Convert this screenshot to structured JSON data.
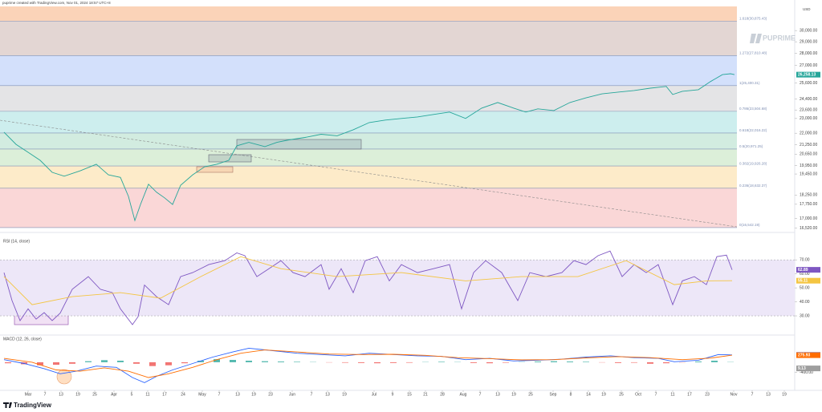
{
  "header": {
    "note": "puprime created with TradingView.com, Nov 01, 2024 18:57 UTC+8",
    "currency": "USD",
    "watermark": "PUPRIME",
    "brand": "TradingView"
  },
  "chart_data": [
    {
      "type": "line",
      "log_scale": true,
      "xlim": [
        0,
        198
      ],
      "ylim": [
        16500,
        32270
      ],
      "yticks": [
        {
          "value": 30000,
          "label": "30,000.00"
        },
        {
          "value": 29000,
          "label": "29,000.00"
        },
        {
          "value": 28000,
          "label": "28,000.00"
        },
        {
          "value": 27000,
          "label": "27,000.00"
        },
        {
          "value": 25600,
          "label": "25,600.00"
        },
        {
          "value": 24400,
          "label": "24,400.00"
        },
        {
          "value": 23600,
          "label": "23,600.00"
        },
        {
          "value": 23000,
          "label": "23,000.00"
        },
        {
          "value": 22000,
          "label": "22,000.00"
        },
        {
          "value": 21250,
          "label": "21,250.00"
        },
        {
          "value": 20650,
          "label": "20,650.00"
        },
        {
          "value": 19950,
          "label": "19,950.00"
        },
        {
          "value": 19450,
          "label": "19,450.00"
        },
        {
          "value": 18250,
          "label": "18,250.00"
        },
        {
          "value": 17750,
          "label": "17,750.00"
        },
        {
          "value": 17000,
          "label": "17,000.00"
        },
        {
          "value": 16520,
          "label": "16,520.00"
        }
      ],
      "xticks": [
        {
          "value": 7,
          "label": "Mar"
        },
        {
          "value": 11.2,
          "label": "7"
        },
        {
          "value": 15.2,
          "label": "13"
        },
        {
          "value": 19.4,
          "label": "19"
        },
        {
          "value": 23.6,
          "label": "25"
        },
        {
          "value": 28.4,
          "label": "Apr"
        },
        {
          "value": 32.8,
          "label": "5"
        },
        {
          "value": 36.8,
          "label": "11"
        },
        {
          "value": 41,
          "label": "17"
        },
        {
          "value": 45.6,
          "label": "24"
        },
        {
          "value": 50.4,
          "label": "May"
        },
        {
          "value": 54.6,
          "label": "7"
        },
        {
          "value": 59.2,
          "label": "13"
        },
        {
          "value": 63.2,
          "label": "19"
        },
        {
          "value": 67.4,
          "label": "23"
        },
        {
          "value": 72.8,
          "label": "Jun"
        },
        {
          "value": 77.6,
          "label": "7"
        },
        {
          "value": 81.6,
          "label": "13"
        },
        {
          "value": 85.8,
          "label": "19"
        },
        {
          "value": 93.2,
          "label": "Jul"
        },
        {
          "value": 97.8,
          "label": "9"
        },
        {
          "value": 102,
          "label": "15"
        },
        {
          "value": 106,
          "label": "21"
        },
        {
          "value": 110.2,
          "label": "28"
        },
        {
          "value": 115.4,
          "label": "Aug"
        },
        {
          "value": 119.6,
          "label": "7"
        },
        {
          "value": 124,
          "label": "13"
        },
        {
          "value": 128,
          "label": "19"
        },
        {
          "value": 132.2,
          "label": "25"
        },
        {
          "value": 137.8,
          "label": "Sep"
        },
        {
          "value": 142.2,
          "label": "8"
        },
        {
          "value": 146.6,
          "label": "14"
        },
        {
          "value": 150.4,
          "label": "19"
        },
        {
          "value": 154.8,
          "label": "25"
        },
        {
          "value": 159,
          "label": "Oct"
        },
        {
          "value": 163.4,
          "label": "7"
        },
        {
          "value": 167.6,
          "label": "11"
        },
        {
          "value": 171.8,
          "label": "17"
        },
        {
          "value": 176.2,
          "label": "23"
        },
        {
          "value": 182.8,
          "label": "Nov"
        },
        {
          "value": 187.4,
          "label": "7"
        },
        {
          "value": 191.4,
          "label": "13"
        },
        {
          "value": 195.4,
          "label": "19"
        }
      ],
      "fib_top_fill": "#fbd3b8",
      "fib_line_color": "#7f8fb3",
      "fib_levels": [
        {
          "value": 30875.43,
          "label": "1.618(30,875.43)",
          "fill": "#e3d6d3"
        },
        {
          "value": 27810.48,
          "label": "1.272(27,810.48)",
          "fill": "#d3e0fb"
        },
        {
          "value": 25400.31,
          "label": "1(25,400.31)",
          "fill": "#e4e4e6"
        },
        {
          "value": 23504.68,
          "label": "0.786(23,504.68)",
          "fill": "#cdeeee"
        },
        {
          "value": 22016.22,
          "label": "0.618(22,016.22)",
          "fill": "#d2ece0"
        },
        {
          "value": 20971.25,
          "label": "0.5(20,971.25)",
          "fill": "#dcefd9"
        },
        {
          "value": 19926.28,
          "label": "0.382(19,926.28)",
          "fill": "#fdebc9"
        },
        {
          "value": 18632.37,
          "label": "0.236(18,632.37)",
          "fill": "#fad7d7"
        },
        {
          "value": 16542.19,
          "label": "0(16,542.19)"
        }
      ],
      "series": [
        {
          "color": "#26a69a",
          "last_value_label": "26,258.13",
          "x": [
            1,
            4,
            7,
            10,
            13,
            16,
            20,
            24,
            27,
            30,
            32,
            33.6,
            35,
            37,
            39,
            41,
            43,
            45,
            48,
            51,
            54,
            57,
            59,
            62,
            66,
            69,
            72,
            76,
            80,
            84,
            88,
            92,
            96,
            100,
            104,
            108,
            112,
            116,
            120,
            124,
            128,
            131,
            134,
            138,
            142,
            146,
            150,
            154,
            158,
            162,
            166,
            167.6,
            170,
            174,
            177,
            180,
            182,
            183
          ],
          "values": [
            22070,
            21270,
            20770,
            20270,
            19550,
            19320,
            19640,
            20030,
            19400,
            19250,
            18180,
            16900,
            17740,
            18860,
            18410,
            18100,
            17740,
            18800,
            19400,
            19880,
            20030,
            20270,
            21180,
            21400,
            21130,
            21400,
            21560,
            21720,
            21930,
            21830,
            22230,
            22720,
            22890,
            23000,
            23110,
            23280,
            23450,
            23000,
            23730,
            24140,
            23730,
            23450,
            23680,
            23560,
            24140,
            24480,
            24780,
            24910,
            25030,
            25210,
            25340,
            24730,
            24970,
            25090,
            25710,
            26260,
            26330,
            26258.13
          ]
        }
      ]
    },
    {
      "type": "line",
      "title": "RSI (14, close)",
      "ylim": [
        18,
        85
      ],
      "band": [
        30,
        70
      ],
      "band_color": "#ede7f8",
      "yticks": [
        {
          "value": 70,
          "label": "70.00"
        },
        {
          "value": 60,
          "label": "60.00"
        },
        {
          "value": 50,
          "label": "50.00"
        },
        {
          "value": 40,
          "label": "40.00"
        },
        {
          "value": 30,
          "label": "30.00"
        }
      ],
      "series": [
        {
          "color": "#7e57c2",
          "x": [
            1,
            3,
            5,
            7,
            9,
            11,
            13,
            15,
            18,
            22,
            25,
            28,
            30,
            33,
            34.4,
            36,
            39,
            42,
            45,
            48,
            52,
            56,
            59,
            61,
            64,
            67,
            70,
            73,
            76,
            80,
            82,
            85,
            88,
            91,
            94,
            97,
            100,
            104,
            108,
            112,
            115,
            118,
            121,
            125,
            129,
            132,
            136,
            140,
            143,
            146,
            149,
            152,
            155,
            158,
            161,
            164,
            167.6,
            170,
            173,
            176,
            178.6,
            181,
            182.4
          ],
          "values": [
            60.9,
            40.9,
            26.6,
            35,
            27.7,
            32.3,
            26.6,
            32,
            49,
            58,
            49,
            46.6,
            35,
            23.7,
            29.4,
            52,
            43.7,
            38,
            58,
            60.9,
            66.6,
            69.4,
            75,
            73,
            58,
            63.7,
            69.4,
            60.9,
            58,
            66.6,
            49,
            63.7,
            46.6,
            69.4,
            72.3,
            55,
            66.6,
            60.9,
            63.7,
            66.6,
            35,
            60.9,
            69.4,
            60.9,
            40.9,
            60.9,
            58,
            60.9,
            69.4,
            66.6,
            73,
            76.3,
            58,
            66.6,
            60.9,
            66.6,
            38,
            55,
            58,
            52.3,
            72.3,
            73.4,
            62.89
          ]
        },
        {
          "color": "#f4c542",
          "x": [
            1,
            8,
            18,
            30,
            40,
            50,
            60,
            70,
            84,
            100,
            116,
            130,
            144,
            156,
            168,
            176,
            182.4
          ],
          "values": [
            58,
            38,
            43.7,
            46.6,
            42.6,
            58,
            72.3,
            63.7,
            58,
            60.9,
            55,
            58,
            58,
            69.4,
            52.3,
            55,
            55.11
          ]
        }
      ]
    },
    {
      "type": "macd",
      "title": "MACD (12, 26, close)",
      "ylim": [
        -1100,
        1000
      ],
      "yticks": [
        {
          "value": -400,
          "label": "-400.00"
        }
      ],
      "up_color": "#26a69a",
      "down_color": "#ef5350",
      "histogram_color": "#9e9e9e",
      "histogram": {
        "x": [
          2,
          6,
          10,
          14,
          18,
          22,
          26,
          30,
          34,
          38,
          42,
          46,
          50,
          54,
          58,
          62,
          66,
          70,
          74,
          78,
          82,
          86,
          90,
          94,
          98,
          102,
          106,
          110,
          114,
          118,
          122,
          126,
          130,
          134,
          138,
          142,
          146,
          150,
          154,
          158,
          162,
          166,
          170,
          174,
          178,
          182
        ],
        "values": [
          -40,
          -80,
          -120,
          -100,
          -60,
          40,
          80,
          60,
          -60,
          -150,
          -120,
          -40,
          60,
          120,
          90,
          60,
          40,
          30,
          20,
          10,
          -10,
          -20,
          -30,
          -40,
          -30,
          -20,
          10,
          20,
          10,
          -30,
          -40,
          -20,
          10,
          30,
          40,
          30,
          20,
          -10,
          -30,
          -20,
          -60,
          -40,
          -10,
          30,
          60,
          9.13
        ]
      },
      "series": [
        {
          "color": "#2962ff",
          "x": [
            1,
            6,
            11,
            15,
            19,
            24,
            29,
            33,
            36,
            39,
            43,
            48,
            53,
            58,
            62,
            68,
            74,
            80,
            86,
            92,
            98,
            104,
            110,
            116,
            122,
            128,
            134,
            140,
            146,
            152,
            158,
            164,
            168,
            174,
            179,
            182.4
          ],
          "values": [
            100,
            -50,
            -250,
            -450,
            -350,
            -150,
            -200,
            -600,
            -800,
            -550,
            -300,
            -50,
            200,
            400,
            550,
            450,
            350,
            300,
            250,
            350,
            300,
            250,
            230,
            100,
            150,
            50,
            80,
            120,
            200,
            250,
            180,
            150,
            20,
            80,
            300,
            285.06
          ]
        },
        {
          "color": "#ff6d00",
          "x": [
            1,
            8,
            14,
            20,
            26,
            32,
            37,
            42,
            48,
            54,
            60,
            66,
            74,
            82,
            90,
            98,
            106,
            114,
            122,
            130,
            138,
            146,
            154,
            162,
            170,
            177,
            182.4
          ],
          "values": [
            150,
            0,
            -300,
            -350,
            -220,
            -350,
            -600,
            -450,
            -200,
            100,
            350,
            480,
            400,
            320,
            300,
            310,
            270,
            180,
            140,
            90,
            100,
            170,
            220,
            180,
            100,
            160,
            275.93
          ]
        }
      ]
    }
  ]
}
